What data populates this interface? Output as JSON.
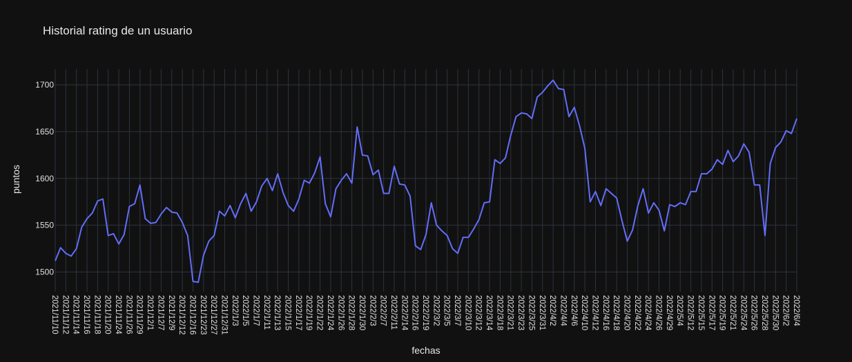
{
  "chart_data": {
    "type": "line",
    "title": "Historial rating de un usuario",
    "xlabel": "fechas",
    "ylabel": "puntos",
    "ylim": [
      1479,
      1717
    ],
    "yticks": [
      1500,
      1550,
      1600,
      1650,
      1700
    ],
    "x_tick_labels": [
      "2021/11/10",
      "2021/11/12",
      "2021/11/14",
      "2021/11/16",
      "2021/11/18",
      "2021/11/20",
      "2021/11/24",
      "2021/11/26",
      "2021/11/29",
      "2021/12/1",
      "2021/12/7",
      "2021/12/9",
      "2021/12/12",
      "2021/12/16",
      "2021/12/23",
      "2021/12/27",
      "2021/12/31",
      "2022/1/3",
      "2022/1/5",
      "2022/1/7",
      "2022/1/11",
      "2022/1/13",
      "2022/1/15",
      "2022/1/17",
      "2022/1/19",
      "2022/1/22",
      "2022/1/24",
      "2022/1/26",
      "2022/1/28",
      "2022/1/30",
      "2022/2/3",
      "2022/2/7",
      "2022/2/11",
      "2022/2/14",
      "2022/2/16",
      "2022/2/19",
      "2022/3/2",
      "2022/3/5",
      "2022/3/7",
      "2022/3/10",
      "2022/3/12",
      "2022/3/14",
      "2022/3/18",
      "2022/3/21",
      "2022/3/23",
      "2022/3/25",
      "2022/3/31",
      "2022/4/2",
      "2022/4/4",
      "2022/4/6",
      "2022/4/10",
      "2022/4/12",
      "2022/4/16",
      "2022/4/18",
      "2022/4/20",
      "2022/4/22",
      "2022/4/24",
      "2022/4/26",
      "2022/4/29",
      "2022/5/4",
      "2022/5/12",
      "2022/5/15",
      "2022/5/17",
      "2022/5/19",
      "2022/5/21",
      "2022/5/24",
      "2022/5/26",
      "2022/5/28",
      "2022/5/30",
      "2022/6/2",
      "2022/6/4"
    ],
    "series": [
      {
        "color": "#636efa",
        "values": [
          1512,
          1526,
          1520,
          1517,
          1525,
          1548,
          1557,
          1563,
          1576,
          1578,
          1539,
          1541,
          1530,
          1540,
          1570,
          1573,
          1593,
          1557,
          1552,
          1553,
          1562,
          1569,
          1564,
          1563,
          1553,
          1539,
          1490,
          1489,
          1518,
          1533,
          1539,
          1565,
          1560,
          1571,
          1558,
          1573,
          1584,
          1565,
          1575,
          1592,
          1600,
          1587,
          1605,
          1585,
          1571,
          1565,
          1578,
          1598,
          1595,
          1606,
          1623,
          1573,
          1559,
          1589,
          1598,
          1605,
          1595,
          1655,
          1625,
          1624,
          1604,
          1609,
          1584,
          1584,
          1613,
          1594,
          1593,
          1581,
          1528,
          1524,
          1540,
          1574,
          1550,
          1544,
          1539,
          1525,
          1520,
          1537,
          1537,
          1546,
          1556,
          1574,
          1575,
          1620,
          1616,
          1622,
          1646,
          1666,
          1670,
          1669,
          1664,
          1687,
          1692,
          1699,
          1705,
          1696,
          1695,
          1666,
          1676,
          1656,
          1632,
          1575,
          1586,
          1571,
          1589,
          1584,
          1579,
          1555,
          1533,
          1545,
          1571,
          1589,
          1563,
          1574,
          1566,
          1544,
          1572,
          1570,
          1574,
          1572,
          1586,
          1586,
          1605,
          1605,
          1610,
          1620,
          1615,
          1630,
          1618,
          1624,
          1637,
          1628,
          1593,
          1593,
          1539,
          1616,
          1633,
          1639,
          1651,
          1648,
          1664
        ]
      }
    ],
    "grid": true,
    "legend": "none"
  }
}
